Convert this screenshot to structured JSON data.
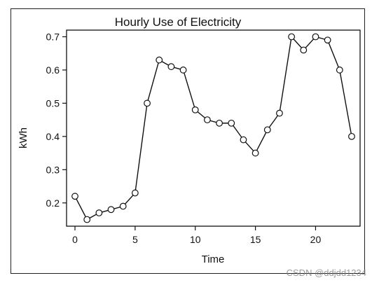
{
  "chart_data": {
    "type": "line",
    "title": "Hourly Use of Electricity",
    "xlabel": "Time",
    "ylabel": "kWh",
    "x": [
      0,
      1,
      2,
      3,
      4,
      5,
      6,
      7,
      8,
      9,
      10,
      11,
      12,
      13,
      14,
      15,
      16,
      17,
      18,
      19,
      20,
      21,
      22,
      23
    ],
    "series": [
      {
        "values": [
          0.22,
          0.15,
          0.17,
          0.18,
          0.19,
          0.23,
          0.5,
          0.63,
          0.61,
          0.6,
          0.48,
          0.45,
          0.44,
          0.44,
          0.39,
          0.35,
          0.42,
          0.47,
          0.7,
          0.66,
          0.7,
          0.69,
          0.6,
          0.4
        ]
      }
    ],
    "xlim": [
      -0.7,
      23.7
    ],
    "ylim": [
      0.13,
      0.72
    ],
    "x_ticks": [
      0,
      5,
      10,
      15,
      20
    ],
    "y_ticks": [
      0.2,
      0.3,
      0.4,
      0.5,
      0.6,
      0.7
    ],
    "marker": "open-circle",
    "grid": false,
    "line_color": "#111111"
  },
  "watermark": "CSDN @ddjdd1234"
}
